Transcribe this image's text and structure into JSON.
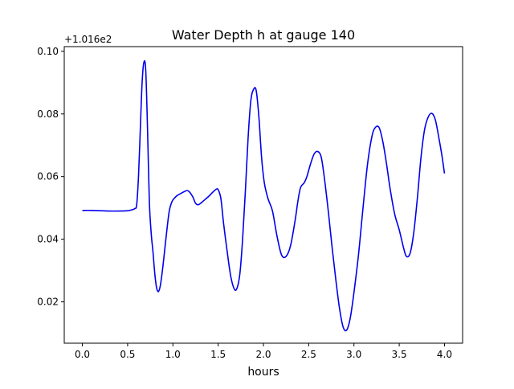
{
  "chart_data": {
    "type": "line",
    "title": "Water Depth h at gauge 140",
    "xlabel": "hours",
    "ylabel": "",
    "offset_label": "+1.016e2",
    "xlim": [
      -0.2,
      4.2
    ],
    "ylim": [
      0.0068,
      0.1015
    ],
    "xticks": [
      0.0,
      0.5,
      1.0,
      1.5,
      2.0,
      2.5,
      3.0,
      3.5,
      4.0
    ],
    "xtick_labels": [
      "0.0",
      "0.5",
      "1.0",
      "1.5",
      "2.0",
      "2.5",
      "3.0",
      "3.5",
      "4.0"
    ],
    "yticks": [
      0.02,
      0.04,
      0.06,
      0.08,
      0.1
    ],
    "ytick_labels": [
      "0.02",
      "0.04",
      "0.06",
      "0.08",
      "0.10"
    ],
    "grid": false,
    "series": [
      {
        "color": "#0000ee",
        "x": [
          0.0,
          0.1,
          0.2,
          0.3,
          0.4,
          0.5,
          0.55,
          0.58,
          0.6,
          0.62,
          0.64,
          0.66,
          0.68,
          0.7,
          0.72,
          0.74,
          0.76,
          0.78,
          0.8,
          0.82,
          0.84,
          0.86,
          0.88,
          0.9,
          0.93,
          0.96,
          0.99,
          1.02,
          1.05,
          1.1,
          1.15,
          1.18,
          1.22,
          1.25,
          1.28,
          1.32,
          1.36,
          1.4,
          1.44,
          1.48,
          1.5,
          1.53,
          1.56,
          1.6,
          1.64,
          1.68,
          1.71,
          1.74,
          1.77,
          1.8,
          1.83,
          1.86,
          1.89,
          1.92,
          1.95,
          1.98,
          2.01,
          2.05,
          2.1,
          2.15,
          2.2,
          2.25,
          2.3,
          2.35,
          2.38,
          2.41,
          2.45,
          2.48,
          2.52,
          2.56,
          2.6,
          2.64,
          2.68,
          2.72,
          2.76,
          2.8,
          2.84,
          2.88,
          2.92,
          2.96,
          3.0,
          3.05,
          3.1,
          3.15,
          3.2,
          3.24,
          3.28,
          3.32,
          3.36,
          3.4,
          3.45,
          3.5,
          3.55,
          3.58,
          3.62,
          3.66,
          3.7,
          3.74,
          3.78,
          3.82,
          3.86,
          3.9,
          3.94,
          3.97,
          4.0
        ],
        "y": [
          0.0492,
          0.0492,
          0.0491,
          0.049,
          0.049,
          0.0491,
          0.0494,
          0.0498,
          0.051,
          0.06,
          0.075,
          0.09,
          0.0965,
          0.094,
          0.075,
          0.052,
          0.042,
          0.036,
          0.029,
          0.0245,
          0.0233,
          0.025,
          0.029,
          0.034,
          0.042,
          0.049,
          0.052,
          0.0532,
          0.054,
          0.0548,
          0.0555,
          0.0552,
          0.0535,
          0.0515,
          0.051,
          0.0518,
          0.0528,
          0.0538,
          0.055,
          0.056,
          0.0558,
          0.053,
          0.045,
          0.036,
          0.028,
          0.024,
          0.0245,
          0.029,
          0.04,
          0.055,
          0.072,
          0.084,
          0.0878,
          0.0875,
          0.079,
          0.066,
          0.058,
          0.053,
          0.049,
          0.041,
          0.035,
          0.0345,
          0.038,
          0.046,
          0.052,
          0.0565,
          0.058,
          0.06,
          0.064,
          0.0672,
          0.068,
          0.066,
          0.058,
          0.048,
          0.037,
          0.027,
          0.018,
          0.012,
          0.011,
          0.015,
          0.023,
          0.035,
          0.05,
          0.064,
          0.073,
          0.0758,
          0.0755,
          0.071,
          0.064,
          0.056,
          0.048,
          0.043,
          0.037,
          0.0345,
          0.0355,
          0.042,
          0.053,
          0.066,
          0.075,
          0.079,
          0.0802,
          0.078,
          0.072,
          0.067,
          0.061
        ]
      }
    ]
  }
}
